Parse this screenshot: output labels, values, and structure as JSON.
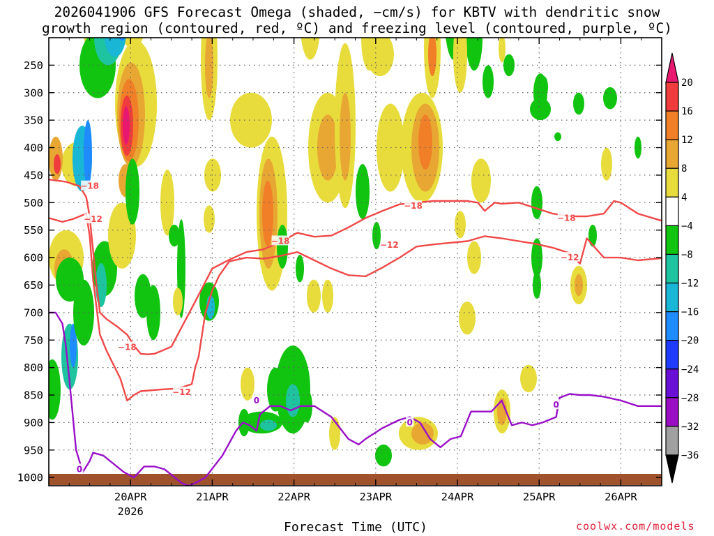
{
  "chart_data": {
    "type": "heatmap",
    "title_line1": "2026041906 GFS Forecast Omega (shaded, −cm/s) for KBTV with dendritic snow",
    "title_line2": "growth region (contoured, red, ºC) and freezing level (contoured, purple, ºC)",
    "xlabel": "Forecast Time (UTC)",
    "ylabel": "",
    "credit": "coolwx.com/models",
    "x_ticks": [
      "20APR",
      "21APR",
      "22APR",
      "23APR",
      "24APR",
      "25APR",
      "26APR"
    ],
    "x_tick_year": "2026",
    "x_range_hours": [
      -3.0,
      177.0
    ],
    "y_ticks": [
      250,
      300,
      350,
      400,
      450,
      500,
      550,
      600,
      650,
      700,
      750,
      800,
      850,
      900,
      950,
      1000
    ],
    "y_range_hPa": [
      200,
      1015
    ],
    "colorbar": {
      "labels": [
        "20",
        "16",
        "12",
        "8",
        "4",
        "−4",
        "−8",
        "−12",
        "−16",
        "−20",
        "−24",
        "−28",
        "−32",
        "−36"
      ],
      "colors": [
        "#e8176f",
        "#f03c3c",
        "#f07f28",
        "#e8a733",
        "#e8dc3c",
        "#ffffff",
        "#10c410",
        "#1ec4a0",
        "#19b6d6",
        "#1e8cff",
        "#1e3cff",
        "#6a0fd6",
        "#9b0fc4",
        "#a0a0a0",
        "#000000"
      ]
    },
    "series": [
      {
        "name": "-18C isotherm (red)",
        "color": "#f04848",
        "x_hours": [
          -3,
          2,
          6,
          8,
          9,
          11,
          12,
          14,
          17,
          20,
          22,
          24,
          26,
          28,
          30,
          33,
          40,
          45,
          50,
          55,
          60,
          65,
          70,
          75,
          80,
          85,
          90,
          95,
          100,
          105,
          110,
          115,
          120,
          123,
          125,
          128,
          130,
          135,
          140,
          145,
          150,
          155,
          160,
          163,
          165,
          170,
          177
        ],
        "y_hPa": [
          458,
          462,
          470,
          490,
          525,
          650,
          700,
          712,
          725,
          740,
          760,
          775,
          776,
          775,
          770,
          762,
          680,
          620,
          604,
          590,
          585,
          572,
          555,
          562,
          560,
          545,
          528,
          515,
          503,
          500,
          497,
          497,
          497,
          500,
          515,
          500,
          502,
          500,
          510,
          520,
          525,
          525,
          520,
          497,
          500,
          520,
          533
        ],
        "labels": [
          {
            "text": "−18",
            "x": 9,
            "y": 470
          },
          {
            "text": "−18",
            "x": 20,
            "y": 763
          },
          {
            "text": "−18",
            "x": 65,
            "y": 570
          },
          {
            "text": "−18",
            "x": 104,
            "y": 506
          },
          {
            "text": "−18",
            "x": 149,
            "y": 528
          }
        ]
      },
      {
        "name": "-12C isotherm (red)",
        "color": "#f04848",
        "x_hours": [
          -3,
          1,
          4,
          8,
          9,
          10,
          11,
          12,
          14,
          16,
          18,
          20,
          22,
          24,
          30,
          35,
          39,
          40,
          41,
          43,
          45,
          47,
          50,
          55,
          60,
          65,
          70,
          75,
          80,
          85,
          90,
          95,
          100,
          105,
          110,
          115,
          120,
          125,
          130,
          135,
          140,
          145,
          150,
          152,
          153,
          155,
          160,
          165,
          170,
          177
        ],
        "y_hPa": [
          528,
          535,
          530,
          520,
          560,
          640,
          690,
          740,
          770,
          795,
          820,
          860,
          850,
          843,
          840,
          838,
          830,
          800,
          780,
          700,
          660,
          633,
          607,
          600,
          602,
          597,
          590,
          605,
          620,
          632,
          634,
          618,
          600,
          580,
          576,
          573,
          570,
          561,
          565,
          570,
          575,
          582,
          592,
          605,
          611,
          565,
          600,
          600,
          605,
          601
        ],
        "labels": [
          {
            "text": "−12",
            "x": 10,
            "y": 530
          },
          {
            "text": "−12",
            "x": 36,
            "y": 845
          },
          {
            "text": "−12",
            "x": 97,
            "y": 577
          },
          {
            "text": "−12",
            "x": 150,
            "y": 600
          }
        ]
      },
      {
        "name": "0C freezing level (purple)",
        "color": "#9a0fc8",
        "x_hours": [
          -3,
          -1,
          1,
          2,
          3,
          5,
          7,
          9,
          10,
          13,
          16,
          19,
          22,
          25,
          28,
          31,
          34,
          36,
          38,
          40,
          43,
          48,
          52,
          54,
          56,
          58,
          59,
          60,
          62,
          65,
          68,
          71,
          75,
          80,
          85,
          88,
          90,
          95,
          100,
          103,
          106,
          109,
          112,
          115,
          118,
          121,
          124,
          127,
          130,
          133,
          136,
          139,
          142,
          146,
          147,
          150,
          153,
          156,
          160,
          165,
          170,
          177
        ],
        "y_hPa": [
          700,
          700,
          720,
          760,
          820,
          950,
          990,
          970,
          955,
          960,
          975,
          990,
          1000,
          980,
          980,
          985,
          1000,
          1010,
          1015,
          1010,
          1000,
          960,
          915,
          900,
          905,
          915,
          885,
          880,
          870,
          870,
          878,
          870,
          870,
          890,
          930,
          940,
          930,
          910,
          895,
          890,
          900,
          930,
          945,
          930,
          925,
          880,
          880,
          880,
          860,
          905,
          900,
          905,
          900,
          890,
          855,
          848,
          850,
          850,
          853,
          860,
          870,
          870
        ],
        "labels": [
          {
            "text": "0",
            "x": 6,
            "y": 985
          },
          {
            "text": "0",
            "x": 58,
            "y": 860
          },
          {
            "text": "0",
            "x": 103,
            "y": 900
          },
          {
            "text": "0",
            "x": 146,
            "y": 868
          }
        ]
      }
    ]
  }
}
